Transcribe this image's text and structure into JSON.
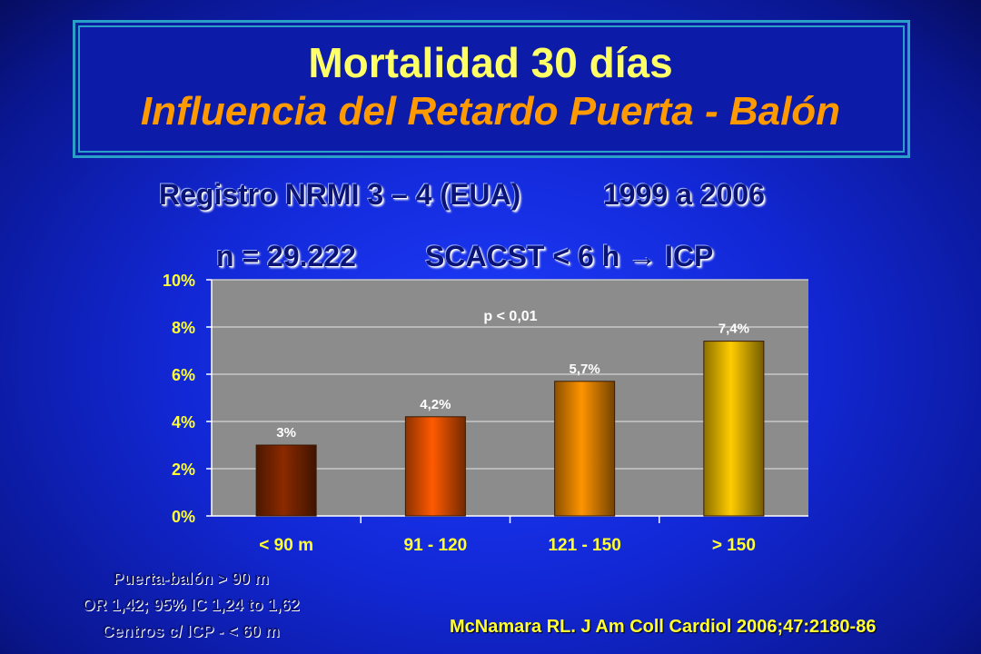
{
  "header": {
    "title": "Mortalidad 30 días",
    "subtitle": "Influencia del Retardo Puerta - Balón"
  },
  "registry": {
    "line1_a": "Registro NRMI 3 – 4 (EUA)",
    "line1_b": "1999 a 2006",
    "line2_a": "n = 29.222",
    "line2_b": "SCACST < 6 h → ICP"
  },
  "chart_data": {
    "type": "bar",
    "categories": [
      "< 90 m",
      "91 - 120",
      "121 - 150",
      "> 150"
    ],
    "values": [
      3.0,
      4.2,
      5.7,
      7.4
    ],
    "data_labels": [
      "3%",
      "4,2%",
      "5,7%",
      "7,4%"
    ],
    "yticks": [
      "0%",
      "2%",
      "4%",
      "6%",
      "8%",
      "10%"
    ],
    "ylim": [
      0,
      10
    ],
    "annotation": "p < 0,01",
    "grid": true,
    "bar_colors": [
      "#8b2a00",
      "#ff5a00",
      "#ff9400",
      "#ffcc00"
    ]
  },
  "footnote": {
    "line1": "Puerta-balón > 90 m",
    "line2": "OR 1,42; 95% IC 1,24 to 1,62",
    "line3": "Centros c/ ICP - < 60 m"
  },
  "citation": "McNamara RL. J Am Coll Cardiol 2006;47:2180-86"
}
